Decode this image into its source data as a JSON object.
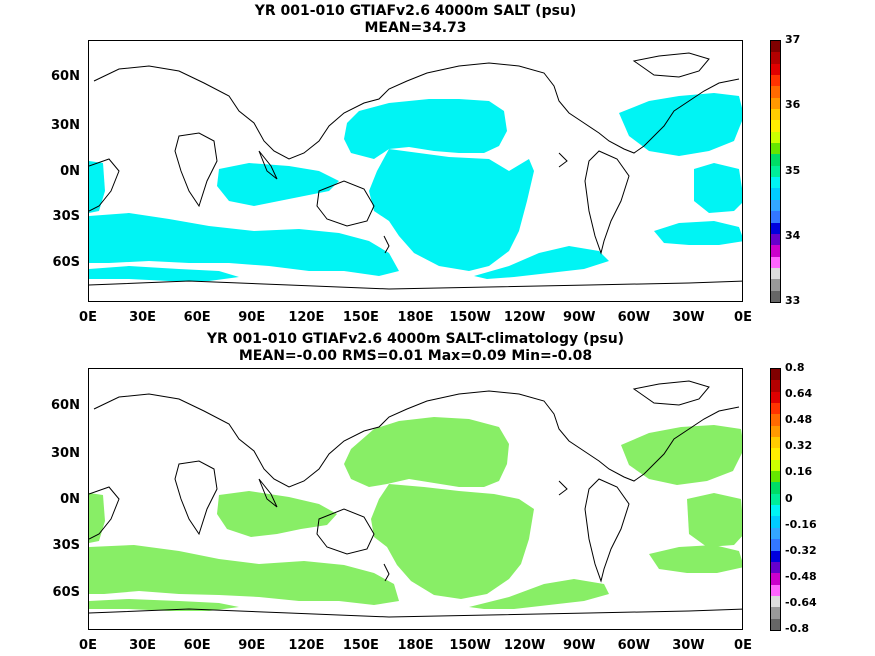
{
  "panels": [
    {
      "title_line1": "YR 001-010 GTIAFv2.6 4000m SALT (psu)",
      "title_line2": "MEAN=34.73",
      "fill_color": "#00f4f4",
      "colorbar_labels": [
        "37",
        "36",
        "35",
        "34",
        "33"
      ],
      "colorbar_colors": [
        "#7f0000",
        "#b30000",
        "#e00000",
        "#ff3300",
        "#ff6a00",
        "#ff9900",
        "#ffcc00",
        "#ffee00",
        "#ccff00",
        "#66e600",
        "#00dd66",
        "#00ee99",
        "#00f4f4",
        "#00ccff",
        "#33a6ff",
        "#3377ff",
        "#0000dd",
        "#6600cc",
        "#cc00cc",
        "#ff66ff",
        "#dddddd",
        "#999999",
        "#666666"
      ]
    },
    {
      "title_line1": "YR 001-010 GTIAFv2.6 4000m SALT-climatology (psu)",
      "title_line2": "MEAN=-0.00   RMS=0.01   Max=0.09   Min=-0.08",
      "fill_color": "#88ee66",
      "colorbar_labels": [
        "0.8",
        "0.64",
        "0.48",
        "0.32",
        "0.16",
        "0",
        "-0.16",
        "-0.32",
        "-0.48",
        "-0.64",
        "-0.8"
      ],
      "colorbar_colors": [
        "#7f0000",
        "#b30000",
        "#e00000",
        "#ff3300",
        "#ff6a00",
        "#ff9900",
        "#ffcc00",
        "#ffee00",
        "#ccff00",
        "#66e600",
        "#00dd66",
        "#00ee99",
        "#00f4f4",
        "#00ccff",
        "#33a6ff",
        "#3377ff",
        "#0000dd",
        "#6600cc",
        "#cc00cc",
        "#ff66ff",
        "#dddddd",
        "#999999",
        "#666666"
      ]
    }
  ],
  "lat_labels": [
    "60N",
    "30N",
    "0N",
    "30S",
    "60S"
  ],
  "lon_labels": [
    "0E",
    "30E",
    "60E",
    "90E",
    "120E",
    "150E",
    "180E",
    "150W",
    "120W",
    "90W",
    "60W",
    "30W",
    "0E"
  ]
}
